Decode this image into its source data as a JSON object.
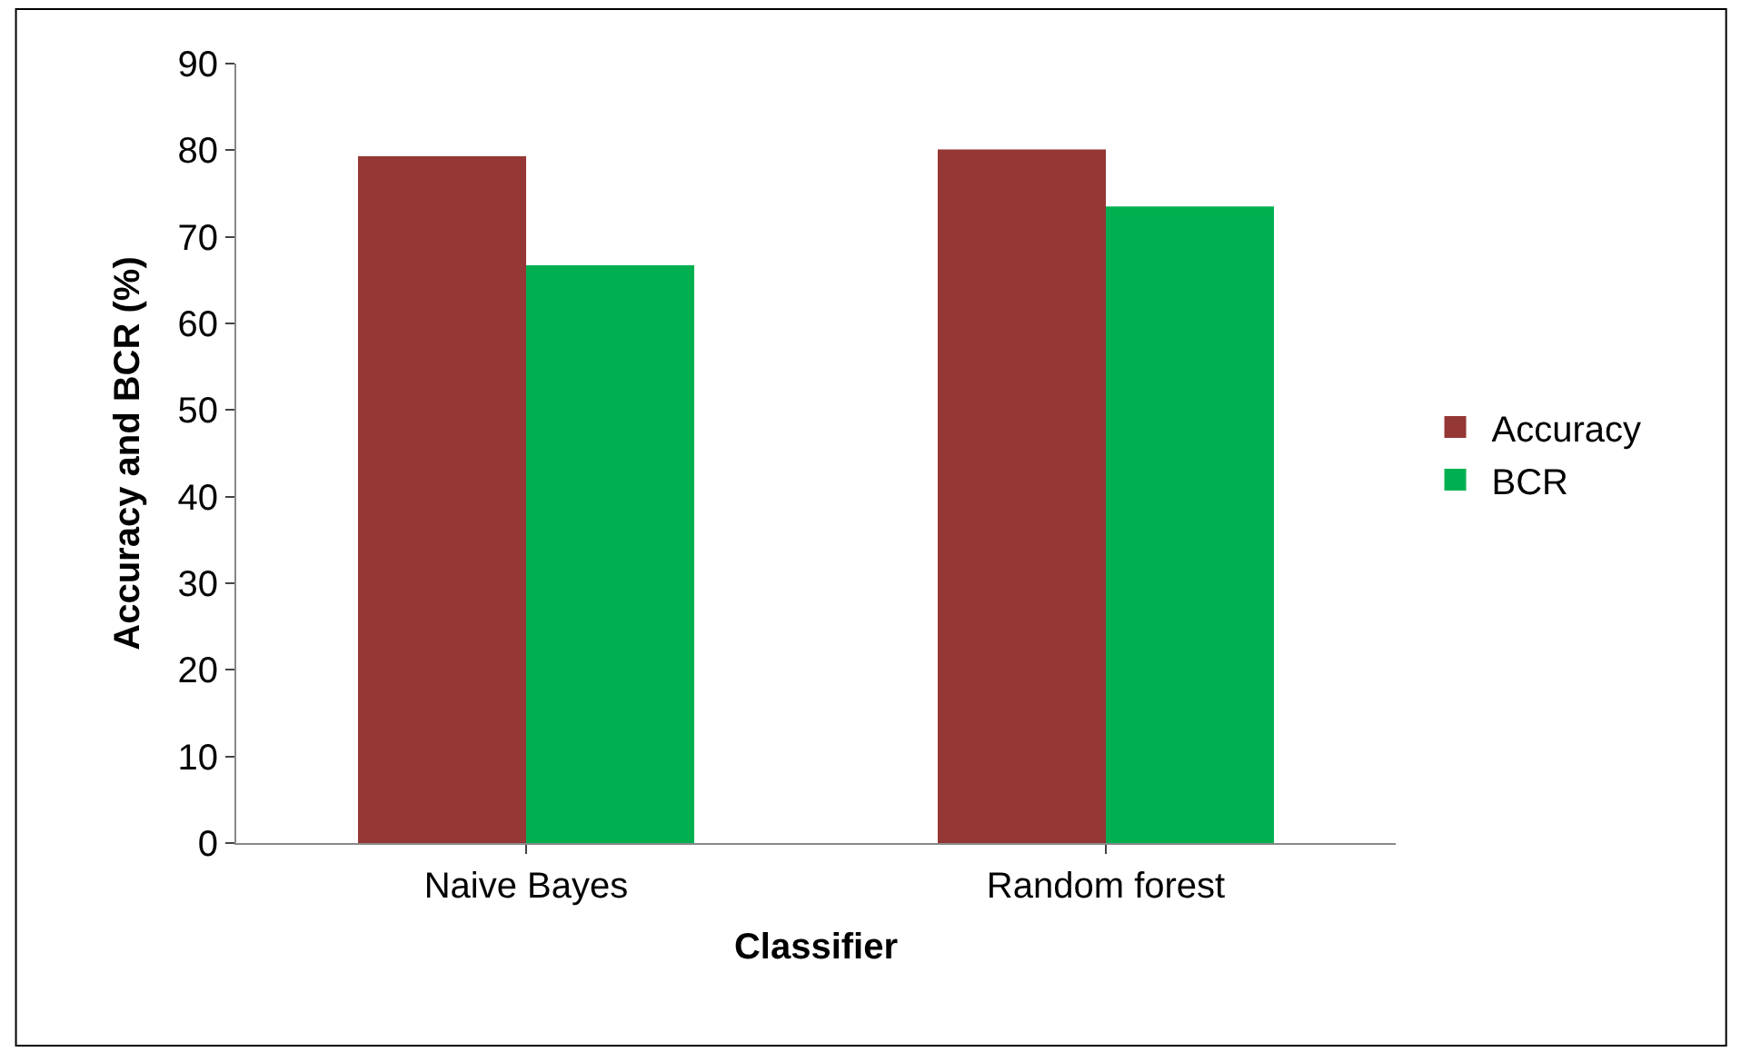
{
  "chart_data": {
    "type": "bar",
    "xlabel": "Classifier",
    "ylabel": "Accuracy and BCR (%)",
    "categories": [
      "Naive Bayes",
      "Random forest"
    ],
    "series": [
      {
        "name": "Accuracy",
        "color": "#953735",
        "values": [
          79.3,
          80.1
        ]
      },
      {
        "name": "BCR",
        "color": "#00b050",
        "values": [
          66.7,
          73.5
        ]
      }
    ],
    "ylim": [
      0,
      90
    ],
    "yticks": [
      0,
      10,
      20,
      30,
      40,
      50,
      60,
      70,
      80,
      90
    ],
    "legend": "right"
  }
}
